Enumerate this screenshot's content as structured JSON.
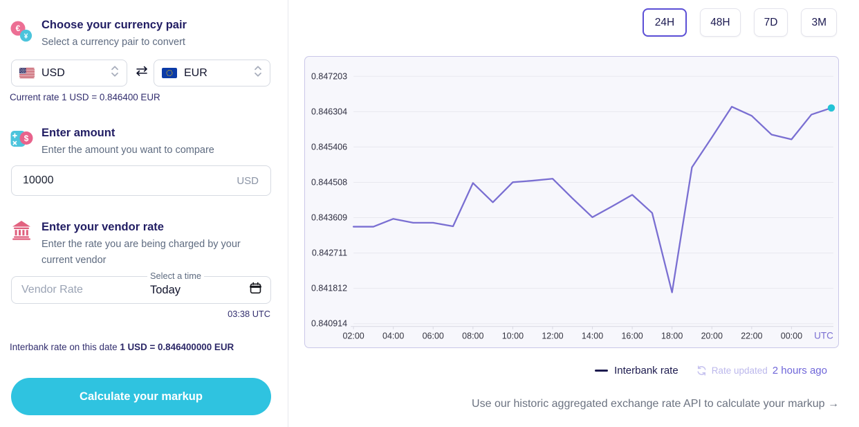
{
  "left": {
    "currency_section": {
      "title": "Choose your currency pair",
      "subtitle": "Select a currency pair to convert"
    },
    "from_currency": "USD",
    "to_currency": "EUR",
    "current_rate": "Current rate 1 USD = 0.846400 EUR",
    "amount_section": {
      "title": "Enter amount",
      "subtitle": "Enter the amount you want to compare"
    },
    "amount_value": "10000",
    "amount_currency": "USD",
    "vendor_section": {
      "title": "Enter your vendor rate",
      "subtitle": "Enter the rate you are being charged by your current vendor"
    },
    "vendor_rate_placeholder": "Vendor Rate",
    "time_field_label": "Select a time",
    "time_field_value": "Today",
    "time_utc": "03:38 UTC",
    "interbank_prefix": "Interbank rate on this date ",
    "interbank_rate": "1 USD = 0.846400000 EUR",
    "cta_label": "Calculate your markup"
  },
  "right": {
    "range_buttons": [
      "24H",
      "48H",
      "7D",
      "3M"
    ],
    "active_range": "24H",
    "rate_updated_label": "Rate updated",
    "rate_updated_value": "2 hours ago",
    "api_link": "Use our historic aggregated exchange rate API to calculate your markup →"
  },
  "icons": {
    "swap_icon": "⇄"
  },
  "colors": {
    "accent_purple": "#5b4fd6",
    "line_purple": "#7a6fd2",
    "cta_cyan": "#2fc3e0",
    "end_dot_teal": "#23c3d6",
    "navy": "#211d63"
  },
  "chart_data": {
    "type": "line",
    "title": "",
    "xlabel": "",
    "ylabel": "",
    "x": [
      "02:00",
      "03:00",
      "04:00",
      "05:00",
      "06:00",
      "07:00",
      "08:00",
      "09:00",
      "10:00",
      "11:00",
      "12:00",
      "13:00",
      "14:00",
      "15:00",
      "16:00",
      "17:00",
      "18:00",
      "19:00",
      "20:00",
      "21:00",
      "22:00",
      "23:00",
      "00:00",
      "01:00",
      "02:00"
    ],
    "series": [
      {
        "name": "Interbank rate",
        "color": "#7a6fd2",
        "values": [
          0.84338,
          0.84338,
          0.84358,
          0.84348,
          0.84348,
          0.84339,
          0.84449,
          0.844,
          0.84451,
          0.84455,
          0.8446,
          0.8441,
          0.84362,
          0.8439,
          0.84419,
          0.84373,
          0.84171,
          0.84489,
          0.84565,
          0.84643,
          0.8462,
          0.84572,
          0.8456,
          0.84623,
          0.8464
        ]
      }
    ],
    "y_ticks": [
      0.847203,
      0.846304,
      0.845406,
      0.844508,
      0.843609,
      0.842711,
      0.841812,
      0.840914
    ],
    "ylim": [
      0.840914,
      0.847203
    ],
    "x_tick_every": 2,
    "x_axis_suffix": "UTC",
    "grid": true,
    "legend_position": "bottom",
    "end_dot_color": "#23c3d6"
  }
}
